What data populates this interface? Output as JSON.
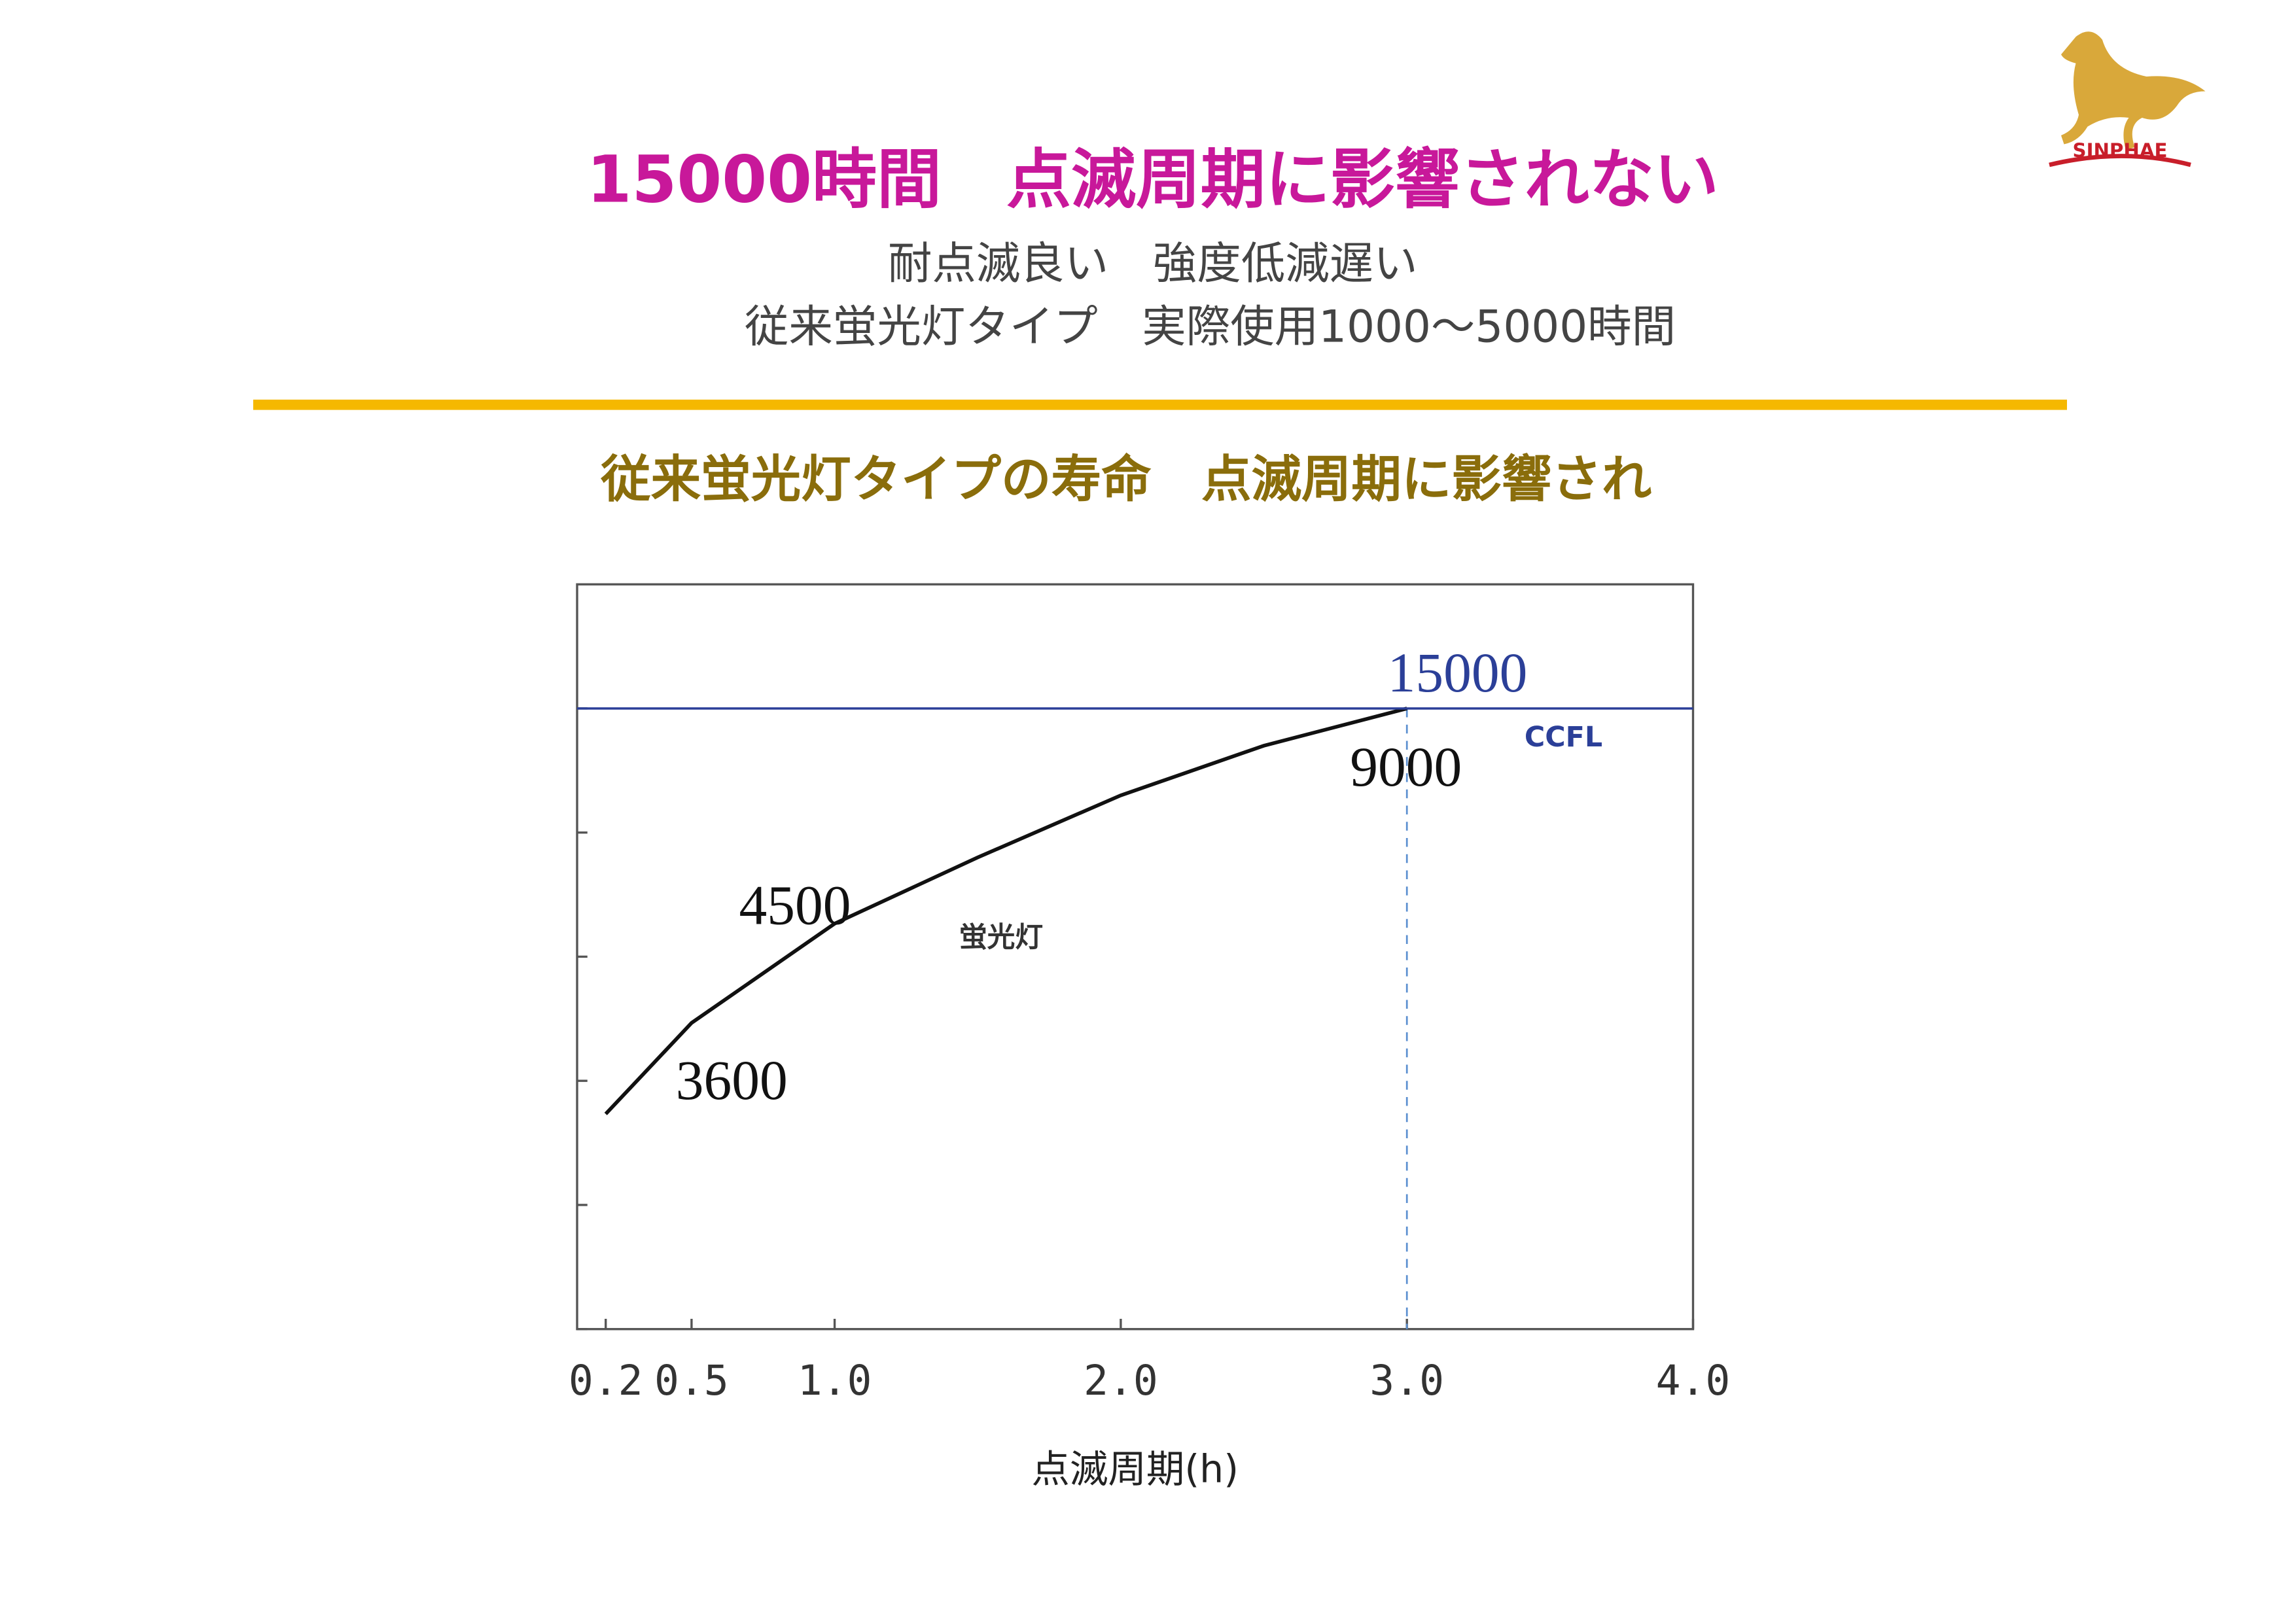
{
  "slide": {
    "title": "15000時間　点滅周期に影響されない",
    "subtitle_lines": [
      "耐点滅良い　強度低減遅い",
      "従来蛍光灯タイプ　実際使用1000～5000時間"
    ],
    "logo": "SINPHAE"
  },
  "chart_data": {
    "type": "line",
    "title": "従来蛍光灯タイプの寿命　点滅周期に影響され",
    "x_label": "点滅周期(h)",
    "xlim": [
      0.1,
      4.0
    ],
    "xticks": [
      0.2,
      0.5,
      {
        "value": 1,
        "label": "1.0"
      },
      {
        "value": 2,
        "label": "2.0"
      },
      {
        "value": 3,
        "label": "3.0"
      },
      {
        "value": 4,
        "label": "4.0"
      }
    ],
    "ylim": [
      0,
      18000
    ],
    "yticks": [
      0,
      3000,
      6000,
      9000,
      12000,
      15000
    ],
    "reference_x": 3,
    "series": [
      {
        "name": "蛍光灯",
        "color": "#111111",
        "x": [
          0.2,
          0.5,
          1.0,
          1.5,
          2.0,
          2.5,
          3.0
        ],
        "values": [
          5200,
          7400,
          9800,
          11400,
          12900,
          14100,
          15000
        ]
      },
      {
        "name": "CCFL",
        "color": "#2b3f98",
        "x": [
          0.1,
          4.0
        ],
        "values": [
          15000,
          15000
        ]
      }
    ],
    "annotations": [
      "15000",
      "9000",
      "4500",
      "3600"
    ]
  }
}
